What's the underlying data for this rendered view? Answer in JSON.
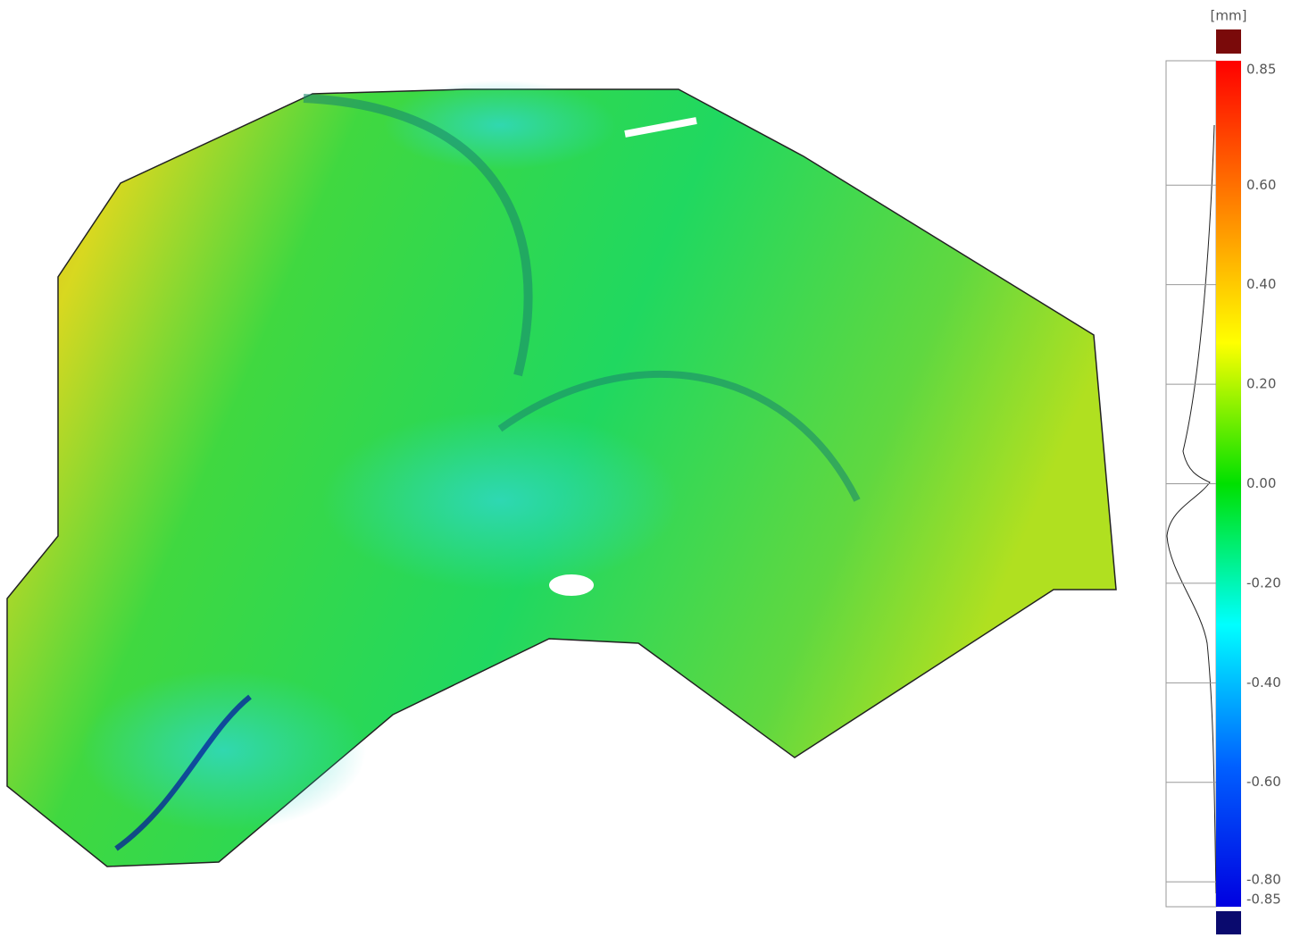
{
  "chart_data": {
    "type": "colormap",
    "title": "[mm]",
    "ylim": [
      -0.85,
      0.85
    ],
    "yticks": [
      0.85,
      {
        "value": 0.6,
        "label": "0.60"
      },
      {
        "value": 0.4,
        "label": "0.40"
      },
      {
        "value": 0.2,
        "label": "0.20"
      },
      {
        "value": 0,
        "label": "0.00"
      },
      {
        "value": -0.2,
        "label": "-0.20"
      },
      {
        "value": -0.4,
        "label": "-0.40"
      },
      {
        "value": -0.6,
        "label": "-0.60"
      },
      {
        "value": -0.8,
        "label": "-0.80"
      },
      -0.85
    ],
    "colors": [
      "#ff0000",
      "#ff7f00",
      "#ffff00",
      "#00e000",
      "#00ffff",
      "#0060ff",
      "#0000e0"
    ],
    "over_color": "#7a0a0a",
    "under_color": "#0a0a6e"
  }
}
